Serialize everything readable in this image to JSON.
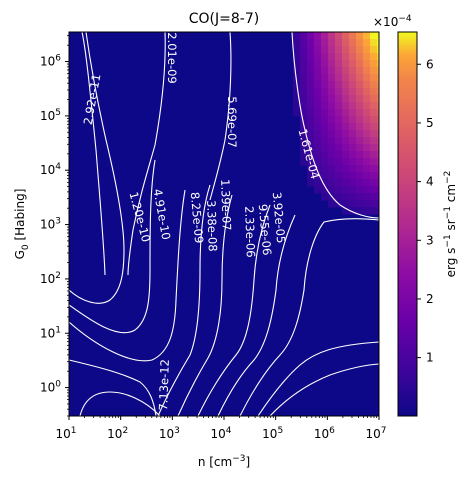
{
  "chart_data": {
    "type": "heatmap",
    "title": "CO(J=8-7)",
    "xlabel": "n [cm$^{-3}$]",
    "ylabel": "G$_0$ [Habing]",
    "x_scale": "log",
    "y_scale": "log",
    "xlim": [
      10,
      10000000
    ],
    "ylim": [
      0.3,
      3500000
    ],
    "x_ticks": [
      {
        "base": "10",
        "exp": "1",
        "value": 10
      },
      {
        "base": "10",
        "exp": "2",
        "value": 100
      },
      {
        "base": "10",
        "exp": "3",
        "value": 1000
      },
      {
        "base": "10",
        "exp": "4",
        "value": 10000
      },
      {
        "base": "10",
        "exp": "5",
        "value": 100000
      },
      {
        "base": "10",
        "exp": "6",
        "value": 1000000
      },
      {
        "base": "10",
        "exp": "7",
        "value": 10000000
      }
    ],
    "y_ticks": [
      {
        "base": "10",
        "exp": "0",
        "value": 1
      },
      {
        "base": "10",
        "exp": "1",
        "value": 10
      },
      {
        "base": "10",
        "exp": "2",
        "value": 100
      },
      {
        "base": "10",
        "exp": "3",
        "value": 1000
      },
      {
        "base": "10",
        "exp": "4",
        "value": 10000
      },
      {
        "base": "10",
        "exp": "5",
        "value": 100000
      },
      {
        "base": "10",
        "exp": "6",
        "value": 1000000
      }
    ],
    "colorbar": {
      "label": "erg s$^{-1}$ sr$^{-1}$ cm$^{-2}$",
      "label_parts": [
        "erg s",
        "−1",
        " sr",
        "−1",
        " cm",
        "−2"
      ],
      "multiplier": "×10",
      "multiplier_exp": "−4",
      "range": [
        5e-07,
        0.000655
      ],
      "ticks": [
        {
          "label": "1",
          "value": 0.0001
        },
        {
          "label": "2",
          "value": 0.0002
        },
        {
          "label": "3",
          "value": 0.0003
        },
        {
          "label": "4",
          "value": 0.0004
        },
        {
          "label": "5",
          "value": 0.0005
        },
        {
          "label": "6",
          "value": 0.0006
        }
      ],
      "colormap": "plasma"
    },
    "contour_labels": [
      "2.92e-11",
      "2.01e-09",
      "5.69e-07",
      "1.61e-04",
      "1.20e-10",
      "4.91e-10",
      "8.25e-09",
      "3.38e-08",
      "1.39e-07",
      "2.33e-06",
      "9.55e-06",
      "3.92e-05",
      "7.13e-12"
    ],
    "grid": false,
    "legend": "none"
  }
}
